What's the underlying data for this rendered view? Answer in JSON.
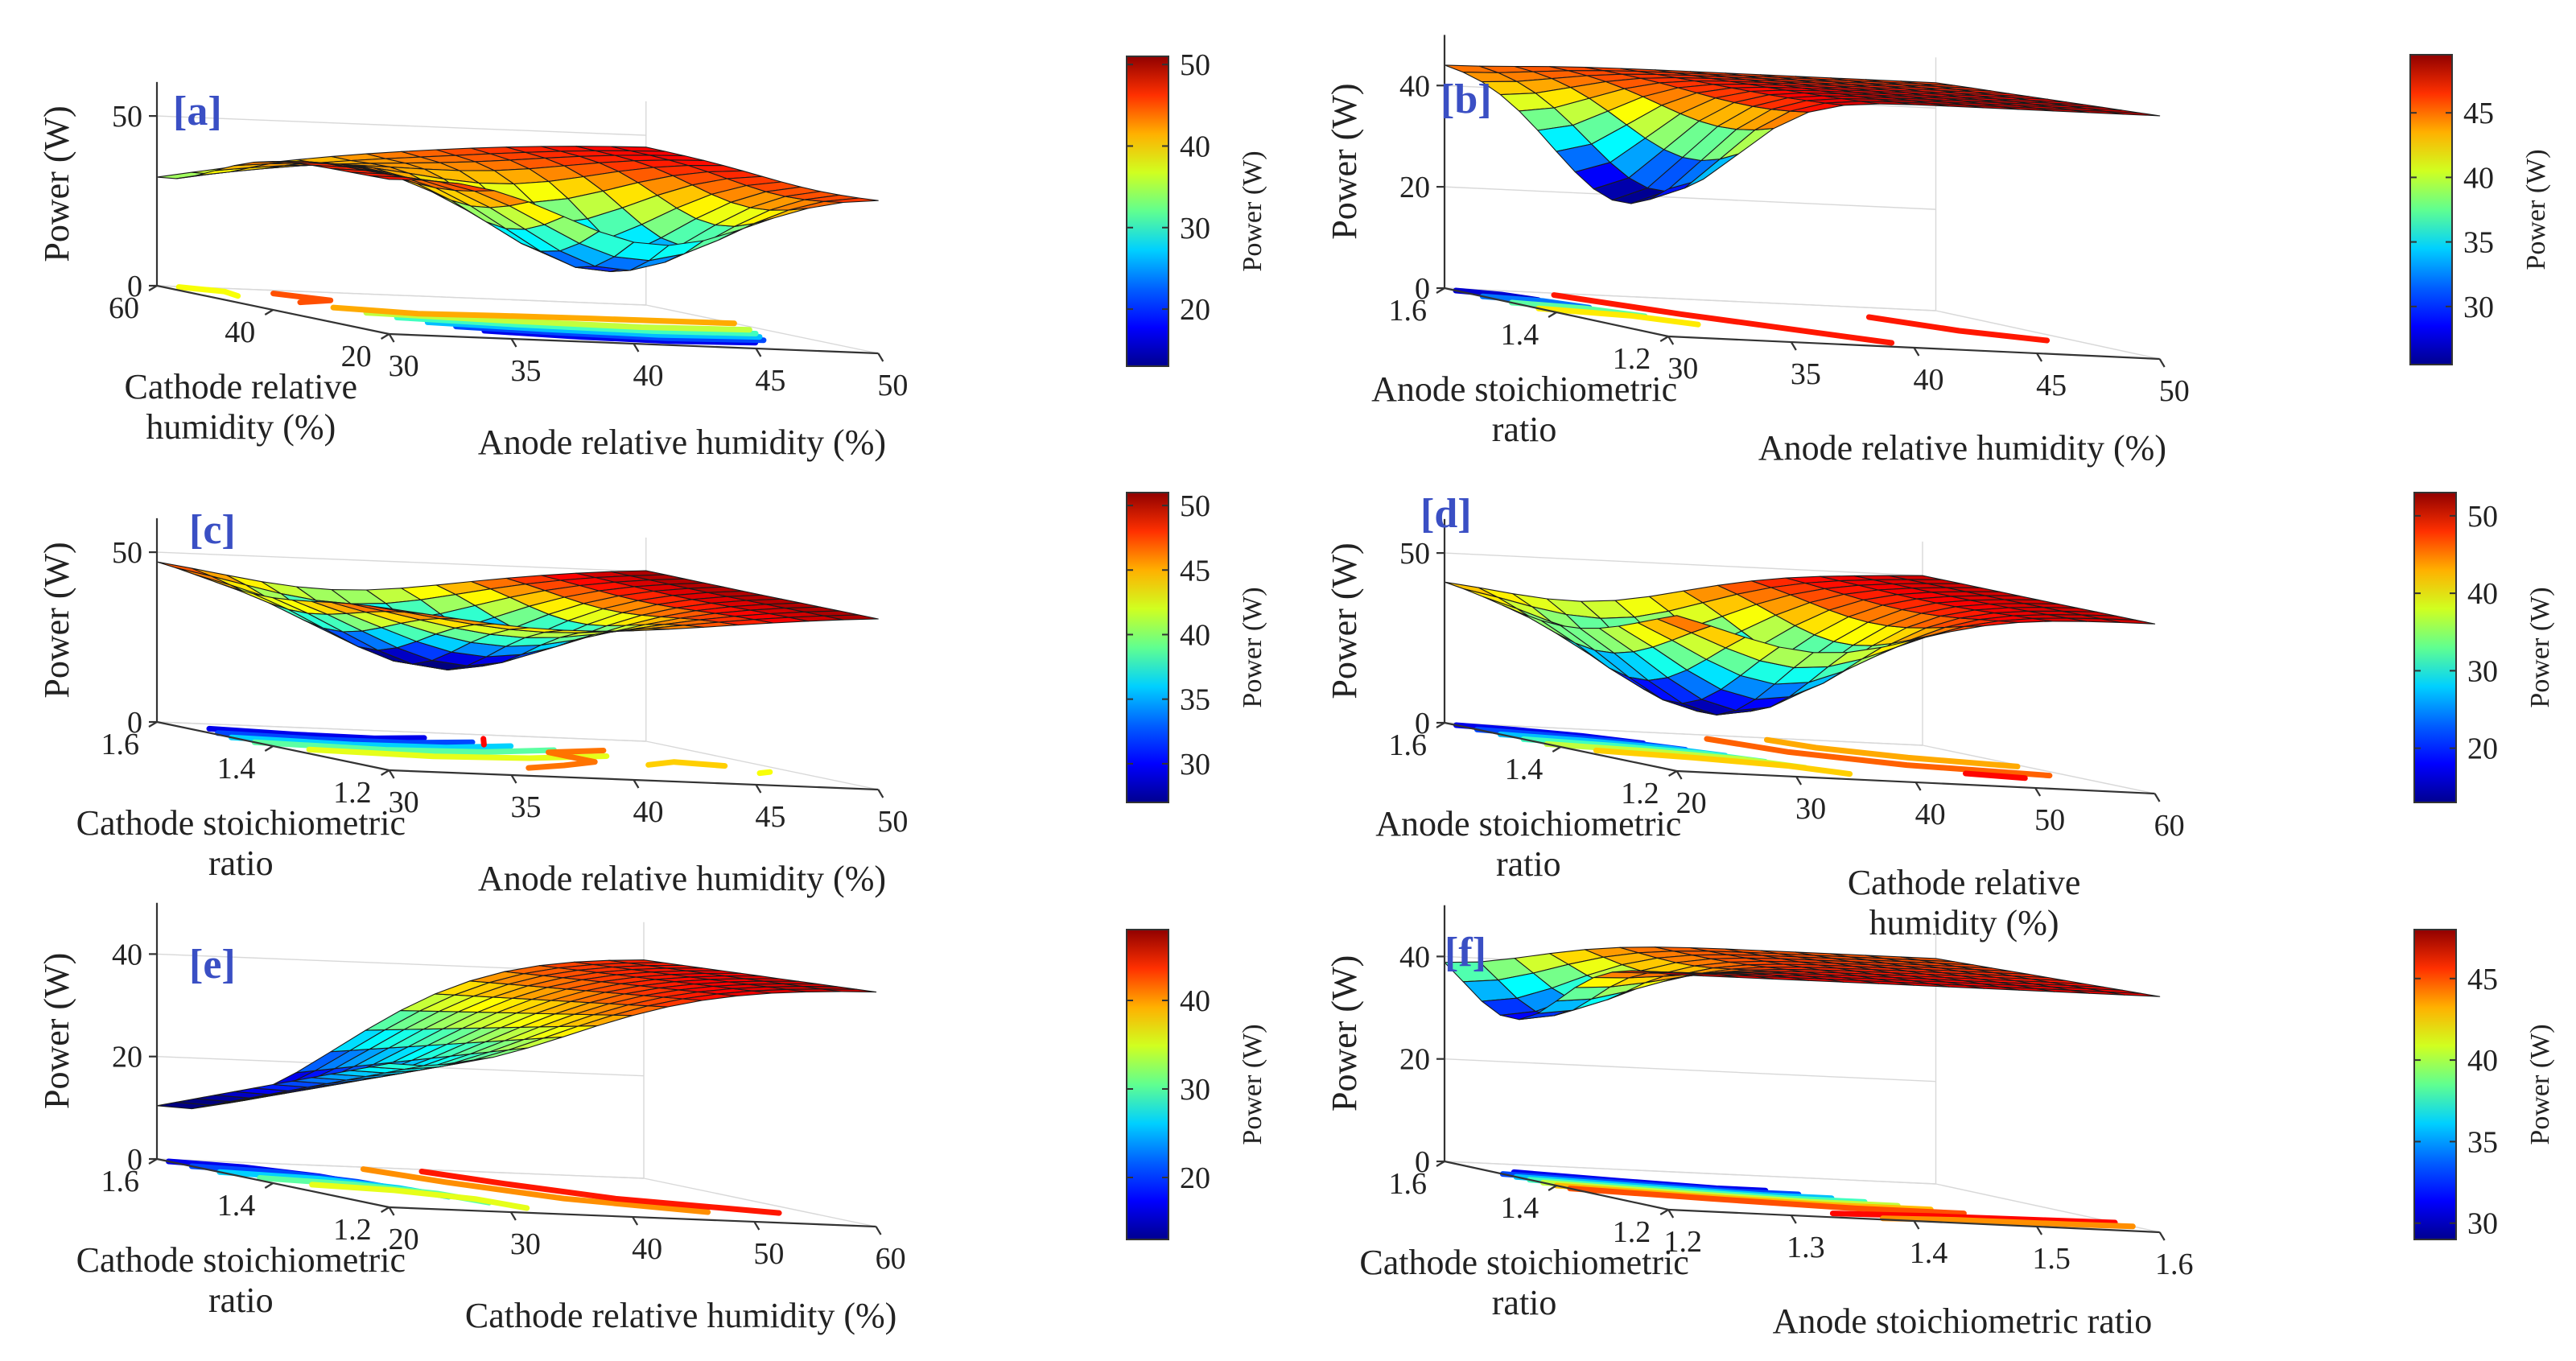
{
  "colors": {
    "colormap": [
      "#00008f",
      "#0000ff",
      "#0080ff",
      "#00ffff",
      "#80ff80",
      "#ffff00",
      "#ff8000",
      "#ff0000",
      "#800000"
    ],
    "panel_label": "#3a4fc4"
  },
  "chart_data": [
    {
      "id": "a",
      "type": "surface",
      "panel_label": "[a]",
      "zlabel": "Power (W)",
      "cblabel": "Power (W)",
      "x_label_lines": [
        "Anode relative humidity (%)"
      ],
      "y_label_lines": [
        "Cathode relative",
        "humidity (%)"
      ],
      "x_ticks": [
        "30",
        "35",
        "40",
        "45",
        "50"
      ],
      "y_ticks": [
        "20",
        "40",
        "60"
      ],
      "z_ticks": [
        "0",
        "50"
      ],
      "cb_ticks": [
        "20",
        "30",
        "40",
        "50"
      ],
      "x_range": [
        30,
        50
      ],
      "y_range": [
        20,
        60
      ],
      "z_range": [
        0,
        60
      ],
      "cb_range": [
        13,
        51
      ],
      "contour_levels": [
        18,
        22,
        26,
        30,
        34,
        38,
        42,
        46
      ]
    },
    {
      "id": "b",
      "type": "surface",
      "panel_label": "[b]",
      "zlabel": "Power (W)",
      "cblabel": "Power (W)",
      "x_label_lines": [
        "Anode relative humidity (%)"
      ],
      "y_label_lines": [
        "Anode stoichiometric",
        "ratio"
      ],
      "x_ticks": [
        "30",
        "35",
        "40",
        "45",
        "50"
      ],
      "y_ticks": [
        "1.2",
        "1.4",
        "1.6"
      ],
      "z_ticks": [
        "0",
        "20",
        "40"
      ],
      "cb_ticks": [
        "30",
        "35",
        "40",
        "45"
      ],
      "x_range": [
        30,
        50
      ],
      "y_range": [
        1.2,
        1.6
      ],
      "z_range": [
        0,
        50
      ],
      "cb_range": [
        25.5,
        49.5
      ],
      "contour_levels": [
        30,
        34,
        38,
        42,
        46
      ]
    },
    {
      "id": "c",
      "type": "surface",
      "panel_label": "[c]",
      "zlabel": "Power (W)",
      "cblabel": "Power (W)",
      "x_label_lines": [
        "Anode relative humidity (%)"
      ],
      "y_label_lines": [
        "Cathode stoichiometric",
        "ratio"
      ],
      "x_ticks": [
        "30",
        "35",
        "40",
        "45",
        "50"
      ],
      "y_ticks": [
        "1.2",
        "1.4",
        "1.6"
      ],
      "z_ticks": [
        "0",
        "50"
      ],
      "cb_ticks": [
        "30",
        "35",
        "40",
        "45",
        "50"
      ],
      "x_range": [
        30,
        50
      ],
      "y_range": [
        1.2,
        1.6
      ],
      "z_range": [
        0,
        60
      ],
      "cb_range": [
        27,
        51
      ],
      "contour_levels": [
        30,
        33,
        36,
        39,
        42,
        45,
        48
      ]
    },
    {
      "id": "d",
      "type": "surface",
      "panel_label": "[d]",
      "zlabel": "Power (W)",
      "cblabel": "Power (W)",
      "x_label_lines": [
        "Cathode relative",
        "humidity (%)"
      ],
      "y_label_lines": [
        "Anode stoichiometric",
        "ratio"
      ],
      "x_ticks": [
        "20",
        "30",
        "40",
        "50",
        "60"
      ],
      "y_ticks": [
        "1.2",
        "1.4",
        "1.6"
      ],
      "z_ticks": [
        "0",
        "50"
      ],
      "cb_ticks": [
        "20",
        "30",
        "40",
        "50"
      ],
      "x_range": [
        20,
        60
      ],
      "y_range": [
        1.2,
        1.6
      ],
      "z_range": [
        0,
        60
      ],
      "cb_range": [
        13,
        53
      ],
      "contour_levels": [
        18,
        22,
        26,
        30,
        34,
        38,
        42,
        46
      ]
    },
    {
      "id": "e",
      "type": "surface",
      "panel_label": "[e]",
      "zlabel": "Power (W)",
      "cblabel": "Power (W)",
      "x_label_lines": [
        "Cathode relative humidity (%)"
      ],
      "y_label_lines": [
        "Cathode stoichiometric",
        "ratio"
      ],
      "x_ticks": [
        "20",
        "30",
        "40",
        "50",
        "60"
      ],
      "y_ticks": [
        "1.2",
        "1.4",
        "1.6"
      ],
      "z_ticks": [
        "0",
        "20",
        "40"
      ],
      "cb_ticks": [
        "20",
        "30",
        "40"
      ],
      "x_range": [
        20,
        60
      ],
      "y_range": [
        1.2,
        1.6
      ],
      "z_range": [
        0,
        50
      ],
      "cb_range": [
        13,
        48
      ],
      "contour_levels": [
        18,
        22,
        26,
        30,
        34,
        38,
        42
      ]
    },
    {
      "id": "f",
      "type": "surface",
      "panel_label": "[f]",
      "zlabel": "Power (W)",
      "cblabel": "Power (W)",
      "x_label_lines": [
        "Anode stoichiometric ratio"
      ],
      "y_label_lines": [
        "Cathode stoichiometric",
        "ratio"
      ],
      "x_ticks": [
        "1.2",
        "1.3",
        "1.4",
        "1.5",
        "1.6"
      ],
      "y_ticks": [
        "1.2",
        "1.4",
        "1.6"
      ],
      "z_ticks": [
        "0",
        "20",
        "40"
      ],
      "cb_ticks": [
        "30",
        "35",
        "40",
        "45"
      ],
      "x_range": [
        1.2,
        1.6
      ],
      "y_range": [
        1.2,
        1.6
      ],
      "z_range": [
        0,
        50
      ],
      "cb_range": [
        29,
        48
      ],
      "contour_levels": [
        31,
        33,
        35,
        37,
        39,
        41,
        43,
        45
      ]
    }
  ]
}
